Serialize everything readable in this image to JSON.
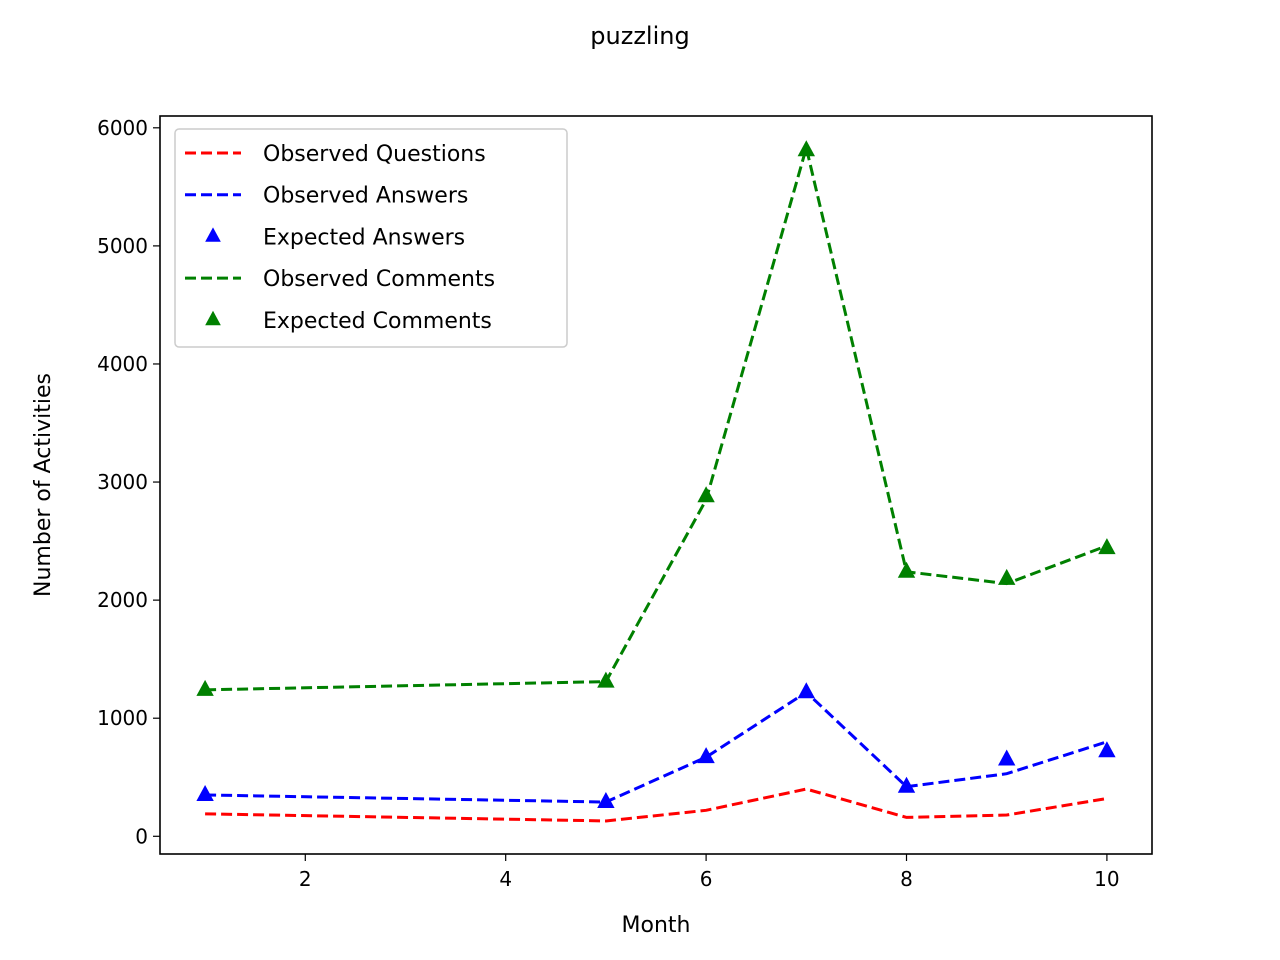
{
  "chart_data": {
    "type": "line",
    "title": "puzzling",
    "xlabel": "Month",
    "ylabel": "Number of Activities",
    "xlim": [
      0.55,
      10.45
    ],
    "ylim": [
      -150,
      6100
    ],
    "xticks": [
      2,
      4,
      6,
      8,
      10
    ],
    "yticks": [
      0,
      1000,
      2000,
      3000,
      4000,
      5000,
      6000
    ],
    "grid": false,
    "legend_position": "upper-left",
    "x": [
      1,
      5,
      6,
      7,
      8,
      9,
      10
    ],
    "series": [
      {
        "name": "Observed Questions",
        "style": "dashed-line",
        "color": "#ff0000",
        "values": [
          190,
          130,
          220,
          400,
          160,
          180,
          320
        ]
      },
      {
        "name": "Observed Answers",
        "style": "dashed-line",
        "color": "#0000ff",
        "values": [
          350,
          290,
          670,
          1220,
          420,
          530,
          800
        ]
      },
      {
        "name": "Expected Answers",
        "style": "triangle-markers",
        "color": "#0000ff",
        "values": [
          350,
          290,
          670,
          1220,
          420,
          650,
          720
        ]
      },
      {
        "name": "Observed Comments",
        "style": "dashed-line",
        "color": "#008000",
        "values": [
          1240,
          1310,
          2850,
          5830,
          2240,
          2140,
          2460
        ]
      },
      {
        "name": "Expected Comments",
        "style": "triangle-markers",
        "color": "#008000",
        "values": [
          1240,
          1310,
          2880,
          5810,
          2240,
          2180,
          2440
        ]
      }
    ]
  }
}
